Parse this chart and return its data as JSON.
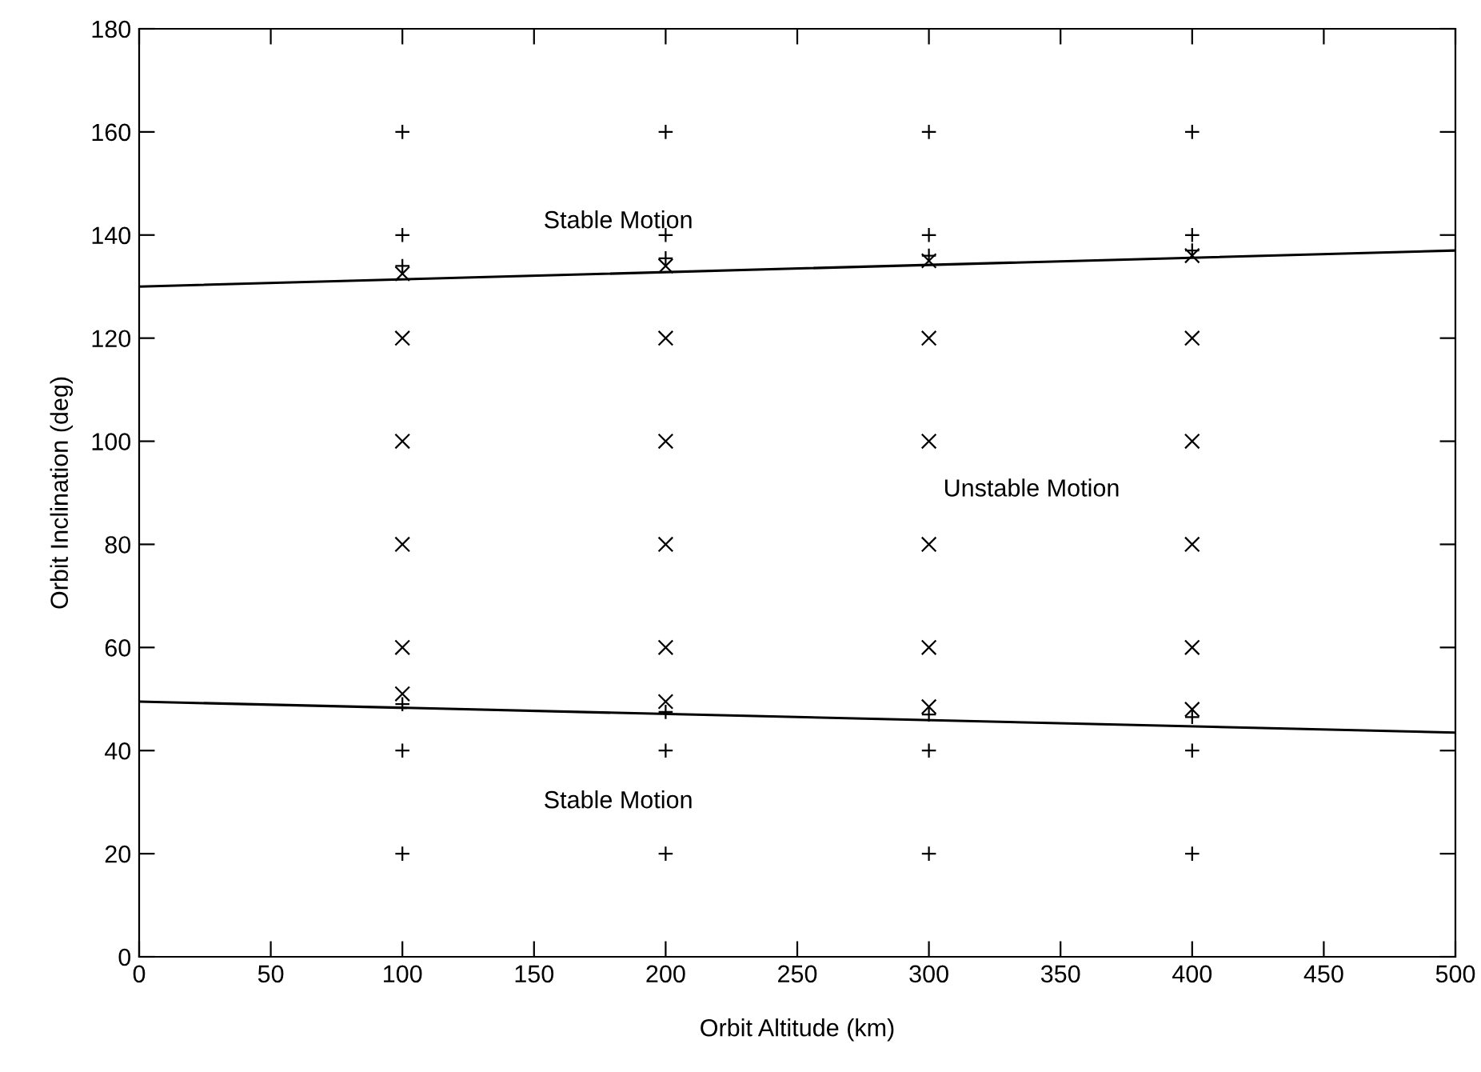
{
  "chart_data": {
    "type": "scatter",
    "xlabel": "Orbit Altitude (km)",
    "ylabel": "Orbit Inclination (deg)",
    "xlim": [
      0,
      500
    ],
    "ylim": [
      0,
      180
    ],
    "xticks": [
      0,
      50,
      100,
      150,
      200,
      250,
      300,
      350,
      400,
      450,
      500
    ],
    "yticks": [
      0,
      20,
      40,
      60,
      80,
      100,
      120,
      140,
      160,
      180
    ],
    "grid": false,
    "legend": false,
    "series": [
      {
        "marker": "plus",
        "color": "#000000",
        "x": [
          100,
          100,
          100,
          100,
          100,
          100,
          200,
          200,
          200,
          200,
          200,
          200,
          300,
          300,
          300,
          300,
          300,
          300,
          400,
          400,
          400,
          400,
          400,
          400
        ],
        "values": [
          20,
          40,
          49,
          134,
          140,
          160,
          20,
          40,
          47.5,
          135.5,
          140,
          160,
          20,
          40,
          47,
          136,
          140,
          160,
          20,
          40,
          46.5,
          137,
          140,
          160
        ]
      },
      {
        "marker": "cross",
        "color": "#000000",
        "x": [
          100,
          100,
          100,
          100,
          100,
          100,
          200,
          200,
          200,
          200,
          200,
          200,
          300,
          300,
          300,
          300,
          300,
          300,
          400,
          400,
          400,
          400,
          400,
          400
        ],
        "values": [
          51,
          60,
          80,
          100,
          120,
          132.5,
          49.5,
          60,
          80,
          100,
          120,
          134,
          48.5,
          60,
          80,
          100,
          120,
          135,
          48,
          60,
          80,
          100,
          120,
          136
        ]
      },
      {
        "type": "line",
        "color": "#000000",
        "x": [
          0,
          500
        ],
        "values": [
          130,
          137
        ]
      },
      {
        "type": "line",
        "color": "#000000",
        "x": [
          0,
          500
        ],
        "values": [
          49.5,
          43.5
        ]
      }
    ],
    "annotations": [
      "Stable Motion",
      "Unstable Motion",
      "Stable Motion"
    ]
  }
}
